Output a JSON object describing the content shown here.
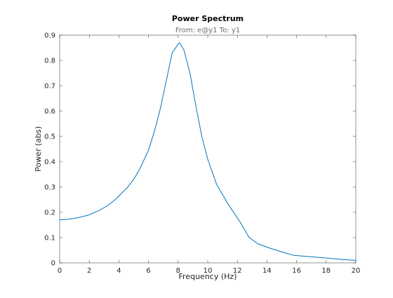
{
  "chart_data": {
    "type": "line",
    "title": "Power Spectrum",
    "subtitle": "From: e@y1  To: y1",
    "xlabel": "Frequency  (Hz)",
    "ylabel": "Power (abs)",
    "xlim": [
      0,
      20
    ],
    "ylim": [
      0,
      0.9
    ],
    "xticks": [
      0,
      2,
      4,
      6,
      8,
      10,
      12,
      14,
      16,
      18,
      20
    ],
    "yticks": [
      0,
      0.1,
      0.2,
      0.3,
      0.4,
      0.5,
      0.6,
      0.7,
      0.8,
      0.9
    ],
    "grid": false,
    "series": [
      {
        "color": "#0072bd",
        "x": [
          0,
          0.5,
          1.0,
          1.5,
          2.0,
          2.6,
          3.2,
          3.8,
          4.4,
          4.6,
          5.0,
          5.4,
          5.8,
          6.0,
          6.4,
          6.8,
          7.2,
          7.6,
          8.0,
          8.1,
          8.4,
          8.8,
          9.2,
          9.6,
          10.0,
          10.6,
          11.4,
          12.2,
          12.8,
          13.4,
          14.2,
          15.2,
          15.8,
          17.0,
          18.2,
          19.2,
          20.0
        ],
        "y": [
          0.17,
          0.172,
          0.176,
          0.182,
          0.19,
          0.205,
          0.225,
          0.252,
          0.288,
          0.3,
          0.33,
          0.37,
          0.42,
          0.445,
          0.52,
          0.61,
          0.72,
          0.83,
          0.865,
          0.87,
          0.84,
          0.75,
          0.62,
          0.5,
          0.41,
          0.31,
          0.23,
          0.16,
          0.1,
          0.075,
          0.058,
          0.04,
          0.03,
          0.024,
          0.018,
          0.013,
          0.01
        ]
      }
    ]
  }
}
